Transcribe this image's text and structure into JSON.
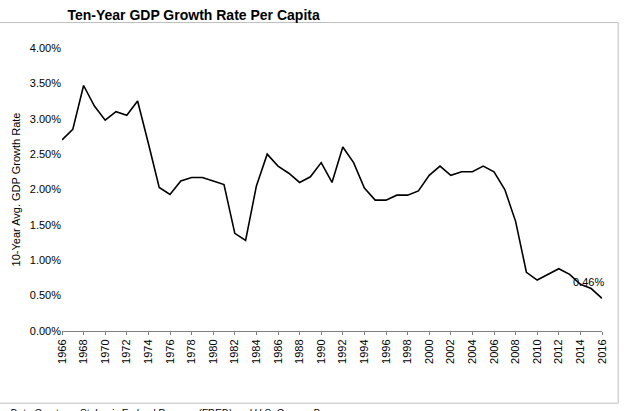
{
  "chart_data": {
    "type": "line",
    "title": "Ten-Year GDP Growth Rate Per Capita",
    "y_label": "10-Year Avg. GDP Growth Rate",
    "source": "Data Courtesy: St. Louis Federal Reserve (FRED) and U.S. Census Bureau",
    "x": [
      1966,
      1967,
      1968,
      1969,
      1970,
      1971,
      1972,
      1973,
      1974,
      1975,
      1976,
      1977,
      1978,
      1979,
      1980,
      1981,
      1982,
      1983,
      1984,
      1985,
      1986,
      1987,
      1988,
      1989,
      1990,
      1991,
      1992,
      1993,
      1994,
      1995,
      1996,
      1997,
      1998,
      1999,
      2000,
      2001,
      2002,
      2003,
      2004,
      2005,
      2006,
      2007,
      2008,
      2009,
      2010,
      2011,
      2012,
      2013,
      2014,
      2015,
      2016
    ],
    "values": [
      2.7,
      2.85,
      3.47,
      3.18,
      2.98,
      3.1,
      3.05,
      3.25,
      2.65,
      2.03,
      1.93,
      2.12,
      2.17,
      2.17,
      2.12,
      2.07,
      1.38,
      1.28,
      2.05,
      2.5,
      2.33,
      2.23,
      2.1,
      2.18,
      2.38,
      2.1,
      2.6,
      2.38,
      2.02,
      1.85,
      1.85,
      1.92,
      1.92,
      1.98,
      2.2,
      2.33,
      2.2,
      2.25,
      2.25,
      2.33,
      2.25,
      2.0,
      1.55,
      0.83,
      0.72,
      0.8,
      0.88,
      0.8,
      0.66,
      0.6,
      0.46
    ],
    "color": "#000000",
    "xlim": [
      1966,
      2016
    ],
    "xticks": [
      1966,
      1968,
      1970,
      1972,
      1974,
      1976,
      1978,
      1980,
      1982,
      1984,
      1986,
      1988,
      1990,
      1992,
      1994,
      1996,
      1998,
      2000,
      2002,
      2004,
      2006,
      2008,
      2010,
      2012,
      2014,
      2016
    ],
    "ylim": [
      0,
      4
    ],
    "yticks": [
      {
        "value": 0,
        "label": "0.00%"
      },
      {
        "value": 0.5,
        "label": "0.50%"
      },
      {
        "value": 1,
        "label": "1.00%"
      },
      {
        "value": 1.5,
        "label": "1.50%"
      },
      {
        "value": 2,
        "label": "2.00%"
      },
      {
        "value": 2.5,
        "label": "2.50%"
      },
      {
        "value": 3,
        "label": "3.00%"
      },
      {
        "value": 3.5,
        "label": "3.50%"
      },
      {
        "value": 4,
        "label": "4.00%"
      }
    ],
    "grid": false,
    "annotations": [
      {
        "text": "0.46%",
        "x": 2016,
        "y": 0.46
      }
    ]
  }
}
